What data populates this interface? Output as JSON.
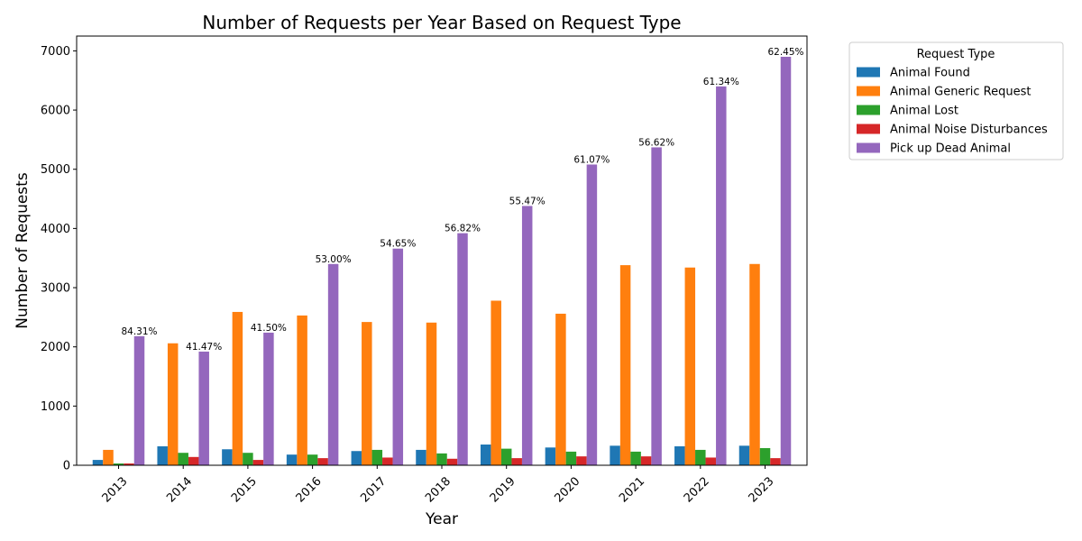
{
  "chart_data": {
    "type": "bar",
    "title": "Number of Requests per Year Based on Request Type",
    "xlabel": "Year",
    "ylabel": "Number of Requests",
    "categories": [
      "2013",
      "2014",
      "2015",
      "2016",
      "2017",
      "2018",
      "2019",
      "2020",
      "2021",
      "2022",
      "2023"
    ],
    "ylim": [
      0,
      7250
    ],
    "yticks": [
      0,
      1000,
      2000,
      3000,
      4000,
      5000,
      6000,
      7000
    ],
    "legend": {
      "title": "Request Type",
      "placement": "outside upper right"
    },
    "series": [
      {
        "name": "Animal Found",
        "color": "#1f77b4",
        "values": [
          90,
          320,
          270,
          180,
          240,
          260,
          350,
          300,
          330,
          320,
          330
        ]
      },
      {
        "name": "Animal Generic Request",
        "color": "#ff7f0e",
        "values": [
          260,
          2060,
          2590,
          2530,
          2420,
          2410,
          2780,
          2560,
          3380,
          3340,
          3400
        ]
      },
      {
        "name": "Animal Lost",
        "color": "#2ca02c",
        "values": [
          30,
          210,
          210,
          180,
          260,
          200,
          280,
          230,
          230,
          260,
          290
        ]
      },
      {
        "name": "Animal Noise Disturbances",
        "color": "#d62728",
        "values": [
          30,
          140,
          90,
          120,
          130,
          110,
          120,
          150,
          150,
          130,
          120
        ]
      },
      {
        "name": "Pick up Dead Animal",
        "color": "#9467bd",
        "values": [
          2180,
          1920,
          2240,
          3400,
          3660,
          3920,
          4380,
          5080,
          5370,
          6400,
          6900
        ]
      }
    ],
    "annotations": [
      "84.31%",
      "41.47%",
      "41.50%",
      "53.00%",
      "54.65%",
      "56.82%",
      "55.47%",
      "61.07%",
      "56.62%",
      "61.34%",
      "62.45%"
    ],
    "annotation_series": "Pick up Dead Animal",
    "grid": false
  }
}
